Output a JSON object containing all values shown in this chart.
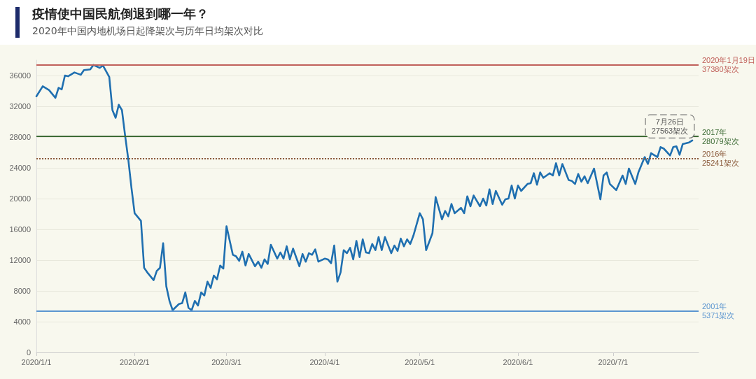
{
  "chart_data": {
    "type": "line",
    "title": "疫情使中国民航倒退到哪一年？",
    "subtitle": "2020年中国内地机场日起降架次与历年日均架次对比",
    "x": [
      "2020-01-01",
      "2020-01-03",
      "2020-01-05",
      "2020-01-07",
      "2020-01-08",
      "2020-01-09",
      "2020-01-10",
      "2020-01-11",
      "2020-01-13",
      "2020-01-15",
      "2020-01-16",
      "2020-01-18",
      "2020-01-19",
      "2020-01-21",
      "2020-01-22",
      "2020-01-24",
      "2020-01-25",
      "2020-01-26",
      "2020-01-27",
      "2020-01-28",
      "2020-01-29",
      "2020-01-30",
      "2020-01-31",
      "2020-02-01",
      "2020-02-03",
      "2020-02-04",
      "2020-02-05",
      "2020-02-07",
      "2020-02-08",
      "2020-02-09",
      "2020-02-10",
      "2020-02-11",
      "2020-02-12",
      "2020-02-13",
      "2020-02-15",
      "2020-02-16",
      "2020-02-17",
      "2020-02-18",
      "2020-02-19",
      "2020-02-20",
      "2020-02-21",
      "2020-02-22",
      "2020-02-23",
      "2020-02-24",
      "2020-02-25",
      "2020-02-26",
      "2020-02-27",
      "2020-02-28",
      "2020-02-29",
      "2020-03-01",
      "2020-03-03",
      "2020-03-04",
      "2020-03-05",
      "2020-03-06",
      "2020-03-07",
      "2020-03-08",
      "2020-03-10",
      "2020-03-11",
      "2020-03-12",
      "2020-03-13",
      "2020-03-14",
      "2020-03-15",
      "2020-03-17",
      "2020-03-18",
      "2020-03-19",
      "2020-03-20",
      "2020-03-21",
      "2020-03-22",
      "2020-03-24",
      "2020-03-25",
      "2020-03-26",
      "2020-03-27",
      "2020-03-28",
      "2020-03-29",
      "2020-03-30",
      "2020-04-01",
      "2020-04-02",
      "2020-04-03",
      "2020-04-04",
      "2020-04-05",
      "2020-04-06",
      "2020-04-07",
      "2020-04-08",
      "2020-04-09",
      "2020-04-10",
      "2020-04-11",
      "2020-04-12",
      "2020-04-13",
      "2020-04-14",
      "2020-04-15",
      "2020-04-16",
      "2020-04-17",
      "2020-04-18",
      "2020-04-19",
      "2020-04-20",
      "2020-04-22",
      "2020-04-23",
      "2020-04-24",
      "2020-04-25",
      "2020-04-26",
      "2020-04-27",
      "2020-04-28",
      "2020-04-29",
      "2020-05-01",
      "2020-05-02",
      "2020-05-03",
      "2020-05-05",
      "2020-05-06",
      "2020-05-08",
      "2020-05-09",
      "2020-05-10",
      "2020-05-11",
      "2020-05-12",
      "2020-05-14",
      "2020-05-15",
      "2020-05-16",
      "2020-05-17",
      "2020-05-18",
      "2020-05-20",
      "2020-05-21",
      "2020-05-22",
      "2020-05-23",
      "2020-05-24",
      "2020-05-25",
      "2020-05-27",
      "2020-05-28",
      "2020-05-29",
      "2020-05-30",
      "2020-05-31",
      "2020-06-01",
      "2020-06-02",
      "2020-06-04",
      "2020-06-05",
      "2020-06-06",
      "2020-06-07",
      "2020-06-08",
      "2020-06-09",
      "2020-06-11",
      "2020-06-12",
      "2020-06-13",
      "2020-06-14",
      "2020-06-15",
      "2020-06-17",
      "2020-06-18",
      "2020-06-19",
      "2020-06-20",
      "2020-06-21",
      "2020-06-22",
      "2020-06-23",
      "2020-06-25",
      "2020-06-27",
      "2020-06-28",
      "2020-06-29",
      "2020-06-30",
      "2020-07-02",
      "2020-07-04",
      "2020-07-05",
      "2020-07-06",
      "2020-07-08",
      "2020-07-09",
      "2020-07-11",
      "2020-07-12",
      "2020-07-13",
      "2020-07-15",
      "2020-07-16",
      "2020-07-17",
      "2020-07-19",
      "2020-07-20",
      "2020-07-21",
      "2020-07-22",
      "2020-07-23",
      "2020-07-25",
      "2020-07-26"
    ],
    "series": [
      {
        "color": "#1f6fb0",
        "values": [
          33300,
          34600,
          34100,
          33100,
          34400,
          34200,
          36000,
          35900,
          36400,
          36100,
          36700,
          36800,
          37380,
          37000,
          37300,
          35800,
          31500,
          30500,
          32200,
          31500,
          28200,
          25100,
          21400,
          18100,
          17100,
          11000,
          10400,
          9400,
          10600,
          11000,
          14200,
          8600,
          6700,
          5500,
          6300,
          6400,
          7800,
          5800,
          5500,
          6700,
          6100,
          7800,
          7400,
          9200,
          8400,
          10000,
          9500,
          11300,
          10900,
          16400,
          12700,
          12500,
          11900,
          13100,
          11300,
          12800,
          11200,
          11800,
          11000,
          12100,
          11500,
          14000,
          12200,
          13000,
          12200,
          13800,
          12100,
          13500,
          11200,
          12800,
          11800,
          12900,
          12700,
          13400,
          11800,
          12200,
          12100,
          11600,
          13900,
          9200,
          10400,
          13300,
          12900,
          13600,
          12100,
          14500,
          12400,
          14700,
          13000,
          12900,
          14100,
          13300,
          15000,
          13300,
          15000,
          12900,
          13900,
          13200,
          14800,
          13800,
          14700,
          14100,
          15200,
          18100,
          17300,
          13300,
          15500,
          20200,
          17300,
          18400,
          17700,
          19300,
          18100,
          18800,
          18100,
          20300,
          19000,
          20400,
          19000,
          20000,
          19100,
          21200,
          19300,
          21000,
          19200,
          19900,
          20000,
          21700,
          20000,
          21700,
          21000,
          21900,
          22000,
          23300,
          21800,
          23400,
          22700,
          23300,
          23000,
          24600,
          23000,
          24500,
          22400,
          22300,
          21900,
          23200,
          22200,
          22900,
          22000,
          23900,
          19900,
          23000,
          23400,
          21900,
          21100,
          23000,
          21900,
          23900,
          21900,
          23400,
          25400,
          24500,
          25900,
          25400,
          26700,
          26500,
          25600,
          26700,
          26800,
          25700,
          27100,
          27300,
          27563
        ]
      }
    ],
    "xlim": [
      "2020-01-01",
      "2020-07-28"
    ],
    "xticks": [
      {
        "value": "2020-01-01",
        "label": "2020/1/1"
      },
      {
        "value": "2020-02-01",
        "label": "2020/2/1"
      },
      {
        "value": "2020-03-01",
        "label": "2020/3/1"
      },
      {
        "value": "2020-04-01",
        "label": "2020/4/1"
      },
      {
        "value": "2020-05-01",
        "label": "2020/5/1"
      },
      {
        "value": "2020-06-01",
        "label": "2020/6/1"
      },
      {
        "value": "2020-07-01",
        "label": "2020/7/1"
      }
    ],
    "ylim": [
      0,
      38000
    ],
    "yticks": [
      0,
      4000,
      8000,
      12000,
      16000,
      20000,
      24000,
      28000,
      32000,
      36000
    ],
    "grid": "y",
    "marker": "none",
    "line_style": "solid",
    "ref_lines": [
      {
        "axis": "y",
        "value": 37380,
        "label": "2020年1月19日\n37380架次",
        "color": "#c0605a"
      },
      {
        "axis": "y",
        "value": 28079,
        "label": "2017年\n28079架次",
        "color": "#3d6b35"
      },
      {
        "axis": "y",
        "value": 25241,
        "label": "2016年\n25241架次",
        "color": "#8a5a3a",
        "line_style": "dotted"
      },
      {
        "axis": "y",
        "value": 5371,
        "label": "2001年\n5371架次",
        "color": "#5b95d0"
      }
    ],
    "annotations": [
      {
        "text": "7月26日\n27563架次",
        "x": "2020-07-26",
        "y": 27563
      }
    ]
  }
}
